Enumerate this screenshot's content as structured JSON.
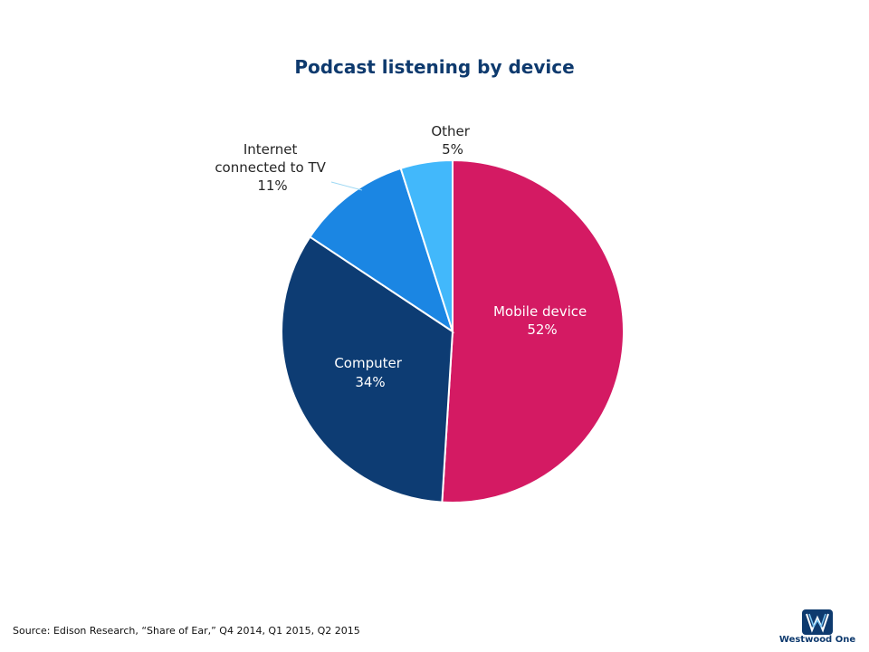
{
  "chart_data": {
    "type": "pie",
    "title": "Podcast listening by device",
    "slices": [
      {
        "name": "Mobile device",
        "value": 52,
        "label": "52%",
        "color": "#d41a63"
      },
      {
        "name": "Computer",
        "value": 34,
        "label": "34%",
        "color": "#0d3c73"
      },
      {
        "name": "Internet connected to TV",
        "value": 11,
        "label": "11%",
        "color": "#1b86e3"
      },
      {
        "name": "Other",
        "value": 5,
        "label": "5%",
        "color": "#42b8fb"
      }
    ]
  },
  "footer": {
    "source": "Source: Edison Research, “Share of Ear,” Q4 2014, Q1 2015, Q2 2015"
  },
  "logo": {
    "text": "Westwood One",
    "icon": "westwood-one-logo-icon",
    "color": "#0e3a6e"
  }
}
